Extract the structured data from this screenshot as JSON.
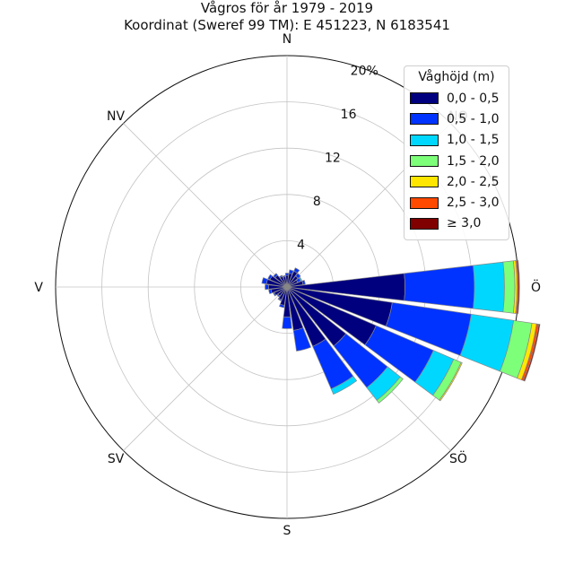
{
  "title": "Vågros för år 1979 - 2019",
  "subtitle": "Koordinat (Sweref 99 TM): E 451223, N 6183541",
  "chart_data": {
    "type": "bar",
    "subtype": "polar-windrose",
    "title": "Vågros för år 1979 - 2019",
    "subtitle": "Koordinat (Sweref 99 TM): E 451223, N 6183541",
    "directions": [
      "N",
      "NO",
      "Ö",
      "SÖ",
      "S",
      "SV",
      "V",
      "NV"
    ],
    "radial_ticks": [
      "4",
      "8",
      "12",
      "16",
      "20%"
    ],
    "radial_tick_values": [
      4,
      8,
      12,
      16,
      20
    ],
    "rmax": 20,
    "bins_deg": [
      0,
      15,
      30,
      45,
      60,
      75,
      90,
      105,
      120,
      135,
      150,
      165,
      180,
      195,
      210,
      225,
      240,
      255,
      270,
      285,
      300,
      315,
      330,
      345
    ],
    "series": [
      {
        "name": "0,0 - 0,5",
        "color": "#00007f",
        "values": [
          1.0,
          1.2,
          1.5,
          1.2,
          1.0,
          1.4,
          10.2,
          9.2,
          8.4,
          6.5,
          5.6,
          3.8,
          2.6,
          1.6,
          1.2,
          1.0,
          1.2,
          1.4,
          1.6,
          1.8,
          1.6,
          1.3,
          1.0,
          0.9
        ]
      },
      {
        "name": "0,5 - 1,0",
        "color": "#0033ff",
        "values": [
          0.2,
          0.3,
          0.3,
          0.3,
          0.3,
          0.2,
          6.0,
          6.9,
          5.4,
          4.6,
          4.0,
          1.8,
          1.0,
          0.2,
          0.1,
          0.1,
          0.1,
          0.2,
          0.3,
          0.4,
          0.2,
          0.2,
          0.1,
          0.1
        ]
      },
      {
        "name": "1,0 - 1,5",
        "color": "#00d7ff",
        "values": [
          0,
          0,
          0,
          0,
          0.1,
          0,
          2.6,
          3.7,
          1.9,
          1.4,
          0.5,
          0,
          0,
          0,
          0,
          0,
          0,
          0,
          0,
          0,
          0,
          0,
          0,
          0
        ]
      },
      {
        "name": "1,5 - 2,0",
        "color": "#7dff7a",
        "values": [
          0,
          0,
          0,
          0,
          0,
          0,
          0.9,
          1.6,
          0.7,
          0.3,
          0,
          0,
          0,
          0,
          0,
          0,
          0,
          0,
          0,
          0,
          0,
          0,
          0,
          0
        ]
      },
      {
        "name": "2,0 - 2,5",
        "color": "#ffe600",
        "values": [
          0,
          0,
          0,
          0,
          0,
          0,
          0.2,
          0.4,
          0.1,
          0,
          0,
          0,
          0,
          0,
          0,
          0,
          0,
          0,
          0,
          0,
          0,
          0,
          0,
          0
        ]
      },
      {
        "name": "2,5 - 3,0",
        "color": "#ff4a00",
        "values": [
          0,
          0,
          0,
          0,
          0,
          0,
          0.1,
          0.2,
          0,
          0,
          0,
          0,
          0,
          0,
          0,
          0,
          0,
          0,
          0,
          0,
          0,
          0,
          0,
          0
        ]
      },
      {
        "name": "≥ 3,0",
        "color": "#800000",
        "values": [
          0,
          0,
          0,
          0,
          0,
          0,
          0.1,
          0.1,
          0,
          0,
          0,
          0,
          0,
          0,
          0,
          0,
          0,
          0,
          0,
          0,
          0,
          0,
          0,
          0
        ]
      }
    ],
    "legend": {
      "title": "Våghöjd (m)",
      "placement": "top-right"
    },
    "grid": true
  }
}
